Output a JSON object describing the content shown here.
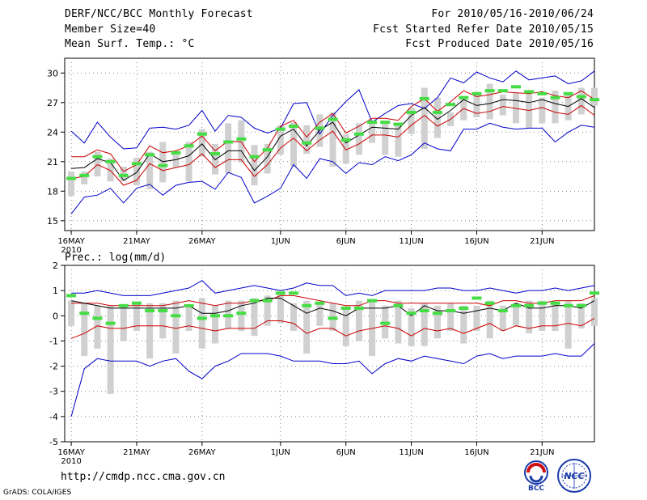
{
  "header": {
    "title": "DERF/NCC/BCC Monthly Forecast",
    "member_size": "Member Size=40",
    "variable": "Mean Surf. Temp.: °C",
    "forecast_period": "For 2010/05/16-2010/06/24",
    "start_refer_date": "Fcst Started Refer Date 2010/05/15",
    "produced_date": "Fcst Produced Date 2010/05/16"
  },
  "footer": {
    "url": "http://cmdp.ncc.cma.gov.cn",
    "credit": "GrADS: COLA/IGES",
    "logo_bcc": "BCC",
    "logo_ncc": "NCC"
  },
  "colors": {
    "max_line": "#0000cc",
    "min_line": "#0000cc",
    "spread_lines": "#cc0000",
    "mean_line": "#000000",
    "box": "#d0d0d0",
    "observed": "#44dd44",
    "grid": "#888888"
  },
  "chart_data": [
    {
      "type": "line",
      "title": "",
      "ylabel": "°C",
      "ylim": [
        14,
        31.5
      ],
      "yticks": [
        15,
        18,
        21,
        24,
        27,
        30
      ],
      "xlim": [
        -0.5,
        40
      ],
      "xticks": [
        0,
        5,
        10,
        16,
        21,
        26,
        31,
        36
      ],
      "xticklabels": [
        "16MAY",
        "21MAY",
        "26MAY",
        "1JUN",
        "6JUN",
        "11JUN",
        "16JUN",
        "21JUN"
      ],
      "xsublabel": "2010",
      "series": [
        {
          "name": "ensemble max",
          "values": [
            24.1,
            22.9,
            25.0,
            23.5,
            22.3,
            22.4,
            24.4,
            24.5,
            24.3,
            24.7,
            26.2,
            24.1,
            25.7,
            25.5,
            24.4,
            23.9,
            24.4,
            26.9,
            27.0,
            23.8,
            25.7,
            27.1,
            28.3,
            25.0,
            25.9,
            26.7,
            26.9,
            26.4,
            27.5,
            29.5,
            29.0,
            30.1,
            29.5,
            29.1,
            30.2,
            29.3,
            29.5,
            29.7,
            28.9,
            29.2,
            30.2
          ]
        },
        {
          "name": "mean + std",
          "values": [
            21.5,
            21.5,
            22.2,
            21.8,
            20.0,
            20.7,
            22.6,
            21.9,
            22.1,
            22.6,
            23.6,
            22.1,
            23.1,
            23.0,
            21.0,
            22.4,
            24.6,
            25.2,
            23.5,
            25.0,
            25.9,
            23.9,
            24.6,
            25.4,
            25.4,
            25.2,
            26.6,
            27.4,
            26.1,
            27.1,
            28.2,
            27.6,
            27.8,
            28.1,
            28.0,
            27.9,
            28.1,
            27.7,
            27.5,
            28.2,
            27.3
          ]
        },
        {
          "name": "ensemble mean",
          "values": [
            20.3,
            20.4,
            21.3,
            20.9,
            19.1,
            19.9,
            21.8,
            21.0,
            21.2,
            21.6,
            22.8,
            21.2,
            22.1,
            22.1,
            20.1,
            21.5,
            23.6,
            24.3,
            22.6,
            24.2,
            25.0,
            22.9,
            23.7,
            24.5,
            24.4,
            24.3,
            25.7,
            26.5,
            25.3,
            26.2,
            27.3,
            26.7,
            26.9,
            27.3,
            27.2,
            27.0,
            27.3,
            26.9,
            26.6,
            27.4,
            26.5
          ]
        },
        {
          "name": "mean - std",
          "values": [
            19.3,
            19.5,
            20.7,
            20.1,
            18.6,
            19.1,
            20.8,
            20.1,
            20.4,
            20.7,
            21.8,
            20.4,
            21.2,
            21.2,
            19.5,
            20.7,
            22.4,
            23.4,
            22.1,
            23.2,
            24.1,
            22.2,
            22.8,
            23.7,
            23.7,
            23.5,
            24.7,
            25.7,
            24.6,
            25.3,
            26.4,
            25.9,
            26.1,
            26.6,
            26.4,
            26.2,
            26.5,
            26.0,
            25.8,
            26.7,
            25.7
          ]
        },
        {
          "name": "ensemble min",
          "values": [
            15.7,
            17.4,
            17.6,
            18.3,
            16.8,
            18.3,
            18.7,
            17.6,
            18.6,
            18.9,
            19.0,
            18.2,
            19.9,
            19.4,
            16.8,
            17.5,
            18.3,
            20.7,
            19.3,
            21.3,
            21.0,
            19.8,
            20.9,
            20.7,
            21.5,
            21.1,
            21.7,
            22.9,
            22.3,
            22.1,
            24.3,
            24.3,
            24.9,
            24.5,
            24.3,
            24.4,
            24.4,
            23.0,
            24.0,
            24.7,
            24.5
          ]
        },
        {
          "name": "box top",
          "values": [
            20.0,
            20.0,
            22.0,
            21.3,
            20.5,
            21.4,
            22.0,
            23.0,
            22.0,
            23.0,
            24.3,
            22.8,
            24.9,
            25.2,
            22.7,
            22.8,
            24.7,
            25.0,
            24.7,
            25.8,
            26.0,
            23.8,
            24.9,
            25.2,
            25.0,
            24.9,
            26.5,
            28.5,
            27.5,
            26.0,
            27.5,
            28.0,
            28.9,
            27.8,
            28.0,
            28.2,
            27.5,
            28.2,
            27.8,
            28.5,
            28.5
          ]
        },
        {
          "name": "box bottom",
          "values": [
            17.5,
            18.7,
            19.5,
            19.0,
            19.0,
            18.6,
            18.2,
            18.9,
            20.4,
            19.0,
            21.5,
            19.7,
            19.8,
            20.9,
            18.6,
            19.8,
            21.7,
            20.5,
            21.8,
            22.5,
            20.5,
            20.8,
            21.7,
            22.9,
            21.7,
            21.5,
            23.8,
            22.3,
            23.4,
            24.6,
            25.2,
            25.5,
            25.3,
            25.7,
            24.9,
            24.4,
            24.9,
            24.9,
            25.2,
            25.8,
            26.7
          ]
        },
        {
          "name": "observed",
          "values": [
            19.3,
            19.6,
            21.5,
            21.0,
            19.6,
            20.8,
            21.7,
            20.6,
            21.9,
            22.6,
            23.8,
            21.8,
            23.0,
            23.3,
            21.5,
            22.2,
            24.3,
            24.6,
            22.9,
            24.4,
            25.3,
            23.2,
            23.8,
            25.0,
            25.0,
            24.8,
            26.0,
            27.4,
            26.0,
            26.8,
            27.5,
            27.9,
            28.2,
            28.2,
            28.6,
            28.1,
            27.9,
            27.5,
            27.9,
            27.6,
            27.3
          ]
        }
      ]
    },
    {
      "type": "line",
      "title": "Prec.: log(mm/d)",
      "ylabel": "log(mm/d)",
      "ylim": [
        -5,
        2
      ],
      "yticks": [
        -5,
        -4,
        -3,
        -2,
        -1,
        0,
        1,
        2
      ],
      "xlim": [
        -0.5,
        40
      ],
      "xticks": [
        0,
        5,
        10,
        16,
        21,
        26,
        31,
        36
      ],
      "xticklabels": [
        "16MAY",
        "21MAY",
        "26MAY",
        "1JUN",
        "6JUN",
        "11JUN",
        "16JUN",
        "21JUN"
      ],
      "xsublabel": "2010",
      "series": [
        {
          "name": "ensemble max",
          "values": [
            0.9,
            0.9,
            1.0,
            0.9,
            0.8,
            0.8,
            0.8,
            0.9,
            1.0,
            1.1,
            1.4,
            0.9,
            1.0,
            1.1,
            1.2,
            1.1,
            1.0,
            1.1,
            1.3,
            1.2,
            1.2,
            0.8,
            0.9,
            0.8,
            1.0,
            1.0,
            1.0,
            1.0,
            1.1,
            1.1,
            1.0,
            1.0,
            1.1,
            1.0,
            0.9,
            1.0,
            1.0,
            1.1,
            1.0,
            1.1,
            1.2
          ]
        },
        {
          "name": "mean + std",
          "values": [
            0.5,
            0.5,
            0.5,
            0.4,
            0.4,
            0.4,
            0.4,
            0.4,
            0.5,
            0.6,
            0.5,
            0.4,
            0.5,
            0.5,
            0.6,
            0.6,
            0.8,
            0.8,
            0.7,
            0.6,
            0.5,
            0.4,
            0.4,
            0.6,
            0.6,
            0.5,
            0.5,
            0.5,
            0.5,
            0.5,
            0.5,
            0.5,
            0.4,
            0.6,
            0.6,
            0.5,
            0.5,
            0.6,
            0.6,
            0.6,
            0.8
          ]
        },
        {
          "name": "ensemble mean",
          "values": [
            0.6,
            0.5,
            0.4,
            0.3,
            0.3,
            0.3,
            0.3,
            0.3,
            0.3,
            0.4,
            0.1,
            0.1,
            0.2,
            0.4,
            0.5,
            0.7,
            0.7,
            0.4,
            0.1,
            0.3,
            0.2,
            0.0,
            0.3,
            0.3,
            0.3,
            0.4,
            0.0,
            0.4,
            0.2,
            0.2,
            0.1,
            0.2,
            0.3,
            0.2,
            0.5,
            0.3,
            0.3,
            0.4,
            0.4,
            0.3,
            0.6
          ]
        },
        {
          "name": "mean - std",
          "values": [
            -0.9,
            -0.7,
            -0.4,
            -0.5,
            -0.5,
            -0.4,
            -0.4,
            -0.4,
            -0.5,
            -0.4,
            -0.5,
            -0.6,
            -0.5,
            -0.5,
            -0.5,
            -0.2,
            -0.2,
            -0.3,
            -0.7,
            -0.5,
            -0.5,
            -0.8,
            -0.6,
            -0.5,
            -0.4,
            -0.5,
            -0.8,
            -0.5,
            -0.6,
            -0.5,
            -0.7,
            -0.5,
            -0.3,
            -0.6,
            -0.4,
            -0.5,
            -0.4,
            -0.4,
            -0.3,
            -0.4,
            -0.1
          ]
        },
        {
          "name": "ensemble min",
          "values": [
            -4.0,
            -2.1,
            -1.7,
            -1.8,
            -1.8,
            -1.8,
            -2.0,
            -1.8,
            -1.7,
            -2.2,
            -2.5,
            -2.0,
            -1.8,
            -1.5,
            -1.5,
            -1.5,
            -1.6,
            -1.8,
            -1.8,
            -1.8,
            -1.9,
            -1.9,
            -1.8,
            -2.3,
            -1.9,
            -1.7,
            -1.8,
            -1.6,
            -1.7,
            -1.8,
            -1.9,
            -1.6,
            -1.5,
            -1.7,
            -1.6,
            -1.6,
            -1.6,
            -1.5,
            -1.6,
            -1.6,
            -1.1
          ]
        },
        {
          "name": "box top",
          "values": [
            0.6,
            0.5,
            0.4,
            0.4,
            0.4,
            0.5,
            0.5,
            0.5,
            0.6,
            0.4,
            0.7,
            0.4,
            0.6,
            0.6,
            0.7,
            0.8,
            0.9,
            0.5,
            0.6,
            0.5,
            0.5,
            0.3,
            0.6,
            0.6,
            0.4,
            0.6,
            0.3,
            0.5,
            0.4,
            0.5,
            0.4,
            0.4,
            0.6,
            0.4,
            0.5,
            0.6,
            0.6,
            0.5,
            0.6,
            0.5,
            0.7
          ]
        },
        {
          "name": "box bottom",
          "values": [
            -0.4,
            -1.6,
            -1.3,
            -3.1,
            -1.0,
            -0.6,
            -1.7,
            -0.9,
            -1.5,
            -0.6,
            -1.3,
            -1.1,
            -0.5,
            -0.6,
            -0.8,
            -0.4,
            -0.3,
            -0.6,
            -1.5,
            -0.4,
            -0.6,
            -1.2,
            -1.0,
            -1.6,
            -0.9,
            -1.1,
            -1.2,
            -1.2,
            -0.9,
            -0.6,
            -1.1,
            -0.6,
            -0.9,
            -0.6,
            -0.4,
            -0.7,
            -0.6,
            -0.6,
            -1.3,
            -0.5,
            -0.4
          ]
        },
        {
          "name": "observed",
          "values": [
            0.8,
            0.1,
            -0.1,
            -0.3,
            0.4,
            0.5,
            0.2,
            0.2,
            0.0,
            0.4,
            -0.1,
            0.0,
            0.0,
            0.1,
            0.6,
            0.6,
            0.9,
            0.9,
            0.4,
            0.5,
            -0.1,
            0.3,
            0.3,
            0.6,
            -0.3,
            0.4,
            0.1,
            0.2,
            0.1,
            0.2,
            0.3,
            0.7,
            0.5,
            0.2,
            0.4,
            0.4,
            0.5,
            0.5,
            0.4,
            0.4,
            0.9
          ]
        }
      ]
    }
  ]
}
